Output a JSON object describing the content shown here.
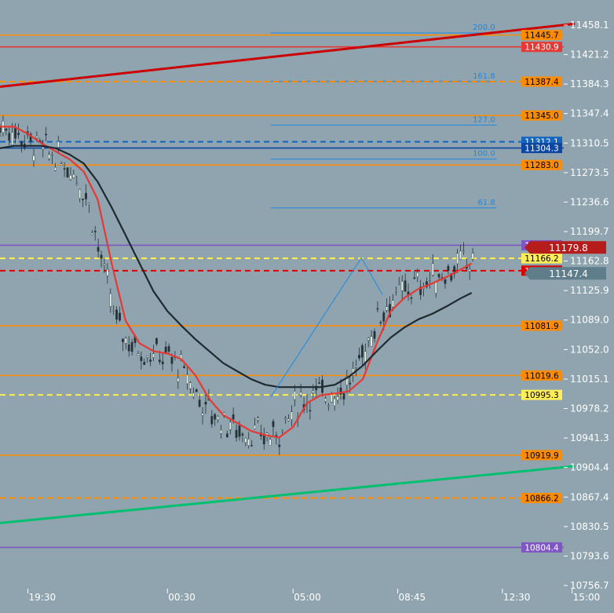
{
  "chart_data": {
    "type": "line",
    "symbol_colors": {
      "background": "#8fa4ae",
      "candle_up": "#e8f5e9",
      "candle_down": "#263238"
    },
    "y_axis": {
      "ticks": [
        "11458.1",
        "11421.2",
        "11384.3",
        "11347.4",
        "11310.5",
        "11273.5",
        "11236.6",
        "11199.7",
        "11162.8",
        "11125.9",
        "11089.0",
        "11052.0",
        "11015.1",
        "10978.2",
        "10941.3",
        "10904.4",
        "10867.4",
        "10830.5",
        "10793.6",
        "10756.7"
      ],
      "ylim": [
        10756.7,
        11458.1
      ]
    },
    "x_axis": {
      "ticks": [
        "19:30",
        "00:30",
        "05:00",
        "08:45",
        "12:30",
        "15:00"
      ],
      "tick_hours": [
        19.5,
        24.5,
        29.0,
        32.75,
        36.5,
        39.0
      ],
      "xlim": [
        18.5,
        40.5
      ]
    },
    "levels": [
      {
        "value": 11445.7,
        "label": "11445.7",
        "color": "#ff8c00",
        "style": "solid"
      },
      {
        "value": 11430.9,
        "label": "11430.9",
        "color": "#e53935",
        "style": "solid"
      },
      {
        "value": 11387.4,
        "label": "11387.4",
        "color": "#ff8c00",
        "style": "dashed"
      },
      {
        "value": 11345.0,
        "label": "11345.0",
        "color": "#ff8c00",
        "style": "solid"
      },
      {
        "value": 11312.1,
        "label": "11312.1",
        "color": "#1565c0",
        "style": "dashed"
      },
      {
        "value": 11304.3,
        "label": "11304.3",
        "color": "#0d47a1",
        "style": "solid"
      },
      {
        "value": 11283.0,
        "label": "11283.0",
        "color": "#ff8c00",
        "style": "solid"
      },
      {
        "value": 11182.6,
        "label": "11182.6",
        "color": "#7e57c2",
        "style": "solid"
      },
      {
        "value": 11166.2,
        "label": "11166.2",
        "color": "#ffee58",
        "style": "dashed"
      },
      {
        "value": 11150.8,
        "label": "11150.8",
        "color": "#d50000",
        "style": "dashed"
      },
      {
        "value": 11081.9,
        "label": "11081.9",
        "color": "#ff8c00",
        "style": "solid"
      },
      {
        "value": 11019.6,
        "label": "11019.6",
        "color": "#ff8c00",
        "style": "solid"
      },
      {
        "value": 10995.3,
        "label": "10995.3",
        "color": "#ffee58",
        "style": "dashed"
      },
      {
        "value": 10919.9,
        "label": "10919.9",
        "color": "#ff8c00",
        "style": "solid"
      },
      {
        "value": 10866.2,
        "label": "10866.2",
        "color": "#ff8c00",
        "style": "dashed"
      },
      {
        "value": 10804.4,
        "label": "10804.4",
        "color": "#7e57c2",
        "style": "solid"
      }
    ],
    "price_tags": [
      {
        "value": 11179.8,
        "label": "11179.8",
        "color": "#b71c1c"
      },
      {
        "value": 11147.4,
        "label": "11147.4",
        "color": "#607d8b"
      }
    ],
    "fib_levels": [
      {
        "ratio": "200.0",
        "value": 11448.3
      },
      {
        "ratio": "161.8",
        "value": 11387.6
      },
      {
        "ratio": "127.0",
        "value": 11333.0
      },
      {
        "ratio": "100.0",
        "value": 11290.4
      },
      {
        "ratio": "61.8",
        "value": 11229.3
      }
    ],
    "fib_x_hours": [
      28.2,
      36.3
    ],
    "fib_color": "#1e88e5",
    "trendlines": [
      {
        "name": "",
        "color": "#cc0000",
        "points": [
          [
            18.5,
            11381.0
          ],
          [
            39.1,
            11459.8
          ]
        ]
      },
      {
        "name": "",
        "color": "#00c070",
        "points": [
          [
            18.5,
            10834.9
          ],
          [
            39.1,
            10906.2
          ]
        ]
      }
    ],
    "zigzag": {
      "color": "#1e88e5",
      "points": [
        [
          28.2,
          10992.5
        ],
        [
          31.45,
          11166.9
        ],
        [
          32.2,
          11120.8
        ]
      ]
    },
    "series": [
      {
        "name": "",
        "color": "#e53935",
        "x": [
          18.5,
          19.0,
          19.5,
          20.0,
          20.5,
          21.0,
          21.5,
          22.0,
          22.5,
          23.0,
          23.5,
          24.0,
          24.5,
          25.0,
          25.5,
          26.0,
          26.5,
          27.0,
          27.5,
          28.0,
          28.5,
          29.0,
          29.5,
          30.0,
          30.5,
          31.0,
          31.5,
          32.0,
          32.5,
          33.0,
          33.5,
          34.0,
          34.5,
          35.0,
          35.4
        ],
        "values": [
          11331,
          11331,
          11322,
          11310,
          11300,
          11290,
          11275,
          11240,
          11160,
          11088,
          11060,
          11050,
          11047,
          11040,
          11020,
          10990,
          10970,
          10960,
          10950,
          10945,
          10942,
          10955,
          10985,
          10995,
          10997,
          11000,
          11015,
          11060,
          11100,
          11117,
          11128,
          11135,
          11143,
          11152,
          11160
        ]
      },
      {
        "name": "",
        "color": "#1f2a30",
        "x": [
          18.5,
          19.0,
          19.5,
          20.0,
          20.5,
          21.0,
          21.5,
          22.0,
          22.5,
          23.0,
          23.5,
          24.0,
          24.5,
          25.0,
          25.5,
          26.0,
          26.5,
          27.0,
          27.5,
          28.0,
          28.5,
          29.0,
          29.5,
          30.0,
          30.5,
          31.0,
          31.5,
          32.0,
          32.5,
          33.0,
          33.5,
          34.0,
          34.5,
          35.0,
          35.4
        ],
        "values": [
          11304,
          11307,
          11307,
          11307,
          11304,
          11296,
          11285,
          11262,
          11230,
          11195,
          11160,
          11125,
          11100,
          11082,
          11065,
          11050,
          11035,
          11025,
          11015,
          11008,
          11005,
          11005,
          11005,
          11005,
          11008,
          11018,
          11032,
          11050,
          11067,
          11080,
          11090,
          11097,
          11106,
          11116,
          11123
        ]
      }
    ]
  }
}
